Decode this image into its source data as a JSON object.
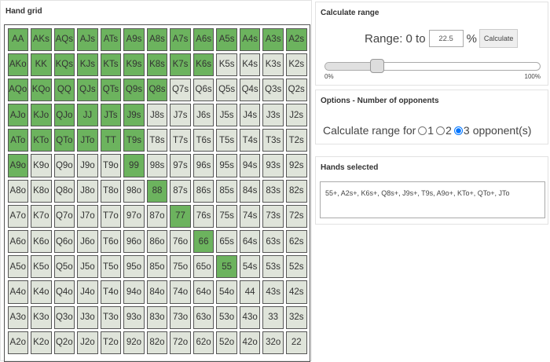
{
  "hand_grid": {
    "title": "Hand grid",
    "rows": [
      [
        "AA",
        "AKs",
        "AQs",
        "AJs",
        "ATs",
        "A9s",
        "A8s",
        "A7s",
        "A6s",
        "A5s",
        "A4s",
        "A3s",
        "A2s"
      ],
      [
        "AKo",
        "KK",
        "KQs",
        "KJs",
        "KTs",
        "K9s",
        "K8s",
        "K7s",
        "K6s",
        "K5s",
        "K4s",
        "K3s",
        "K2s"
      ],
      [
        "AQo",
        "KQo",
        "QQ",
        "QJs",
        "QTs",
        "Q9s",
        "Q8s",
        "Q7s",
        "Q6s",
        "Q5s",
        "Q4s",
        "Q3s",
        "Q2s"
      ],
      [
        "AJo",
        "KJo",
        "QJo",
        "JJ",
        "JTs",
        "J9s",
        "J8s",
        "J7s",
        "J6s",
        "J5s",
        "J4s",
        "J3s",
        "J2s"
      ],
      [
        "ATo",
        "KTo",
        "QTo",
        "JTo",
        "TT",
        "T9s",
        "T8s",
        "T7s",
        "T6s",
        "T5s",
        "T4s",
        "T3s",
        "T2s"
      ],
      [
        "A9o",
        "K9o",
        "Q9o",
        "J9o",
        "T9o",
        "99",
        "98s",
        "97s",
        "96s",
        "95s",
        "94s",
        "93s",
        "92s"
      ],
      [
        "A8o",
        "K8o",
        "Q8o",
        "J8o",
        "T8o",
        "98o",
        "88",
        "87s",
        "86s",
        "85s",
        "84s",
        "83s",
        "82s"
      ],
      [
        "A7o",
        "K7o",
        "Q7o",
        "J7o",
        "T7o",
        "97o",
        "87o",
        "77",
        "76s",
        "75s",
        "74s",
        "73s",
        "72s"
      ],
      [
        "A6o",
        "K6o",
        "Q6o",
        "J6o",
        "T6o",
        "96o",
        "86o",
        "76o",
        "66",
        "65s",
        "64s",
        "63s",
        "62s"
      ],
      [
        "A5o",
        "K5o",
        "Q5o",
        "J5o",
        "T5o",
        "95o",
        "85o",
        "75o",
        "65o",
        "55",
        "54s",
        "53s",
        "52s"
      ],
      [
        "A4o",
        "K4o",
        "Q4o",
        "J4o",
        "T4o",
        "94o",
        "84o",
        "74o",
        "64o",
        "54o",
        "44",
        "43s",
        "42s"
      ],
      [
        "A3o",
        "K3o",
        "Q3o",
        "J3o",
        "T3o",
        "93o",
        "83o",
        "73o",
        "63o",
        "53o",
        "43o",
        "33",
        "32s"
      ],
      [
        "A2o",
        "K2o",
        "Q2o",
        "J2o",
        "T2o",
        "92o",
        "82o",
        "72o",
        "62o",
        "52o",
        "42o",
        "32o",
        "22"
      ]
    ],
    "selected": [
      "AA",
      "AKs",
      "AQs",
      "AJs",
      "ATs",
      "A9s",
      "A8s",
      "A7s",
      "A6s",
      "A5s",
      "A4s",
      "A3s",
      "A2s",
      "AKo",
      "KK",
      "KQs",
      "KJs",
      "KTs",
      "K9s",
      "K8s",
      "K7s",
      "K6s",
      "AQo",
      "KQo",
      "QQ",
      "QJs",
      "QTs",
      "Q9s",
      "Q8s",
      "AJo",
      "KJo",
      "QJo",
      "JJ",
      "JTs",
      "J9s",
      "ATo",
      "KTo",
      "QTo",
      "JTo",
      "TT",
      "T9s",
      "A9o",
      "99",
      "88",
      "77",
      "66",
      "55"
    ],
    "selected_color": "#6cb35e",
    "unselected_color": "#dfe4da"
  },
  "calculate_range": {
    "title": "Calculate range",
    "range_label": "Range: 0 to",
    "value": "22.5",
    "percent_sign": "%",
    "button_label": "Calculate",
    "slider_percent": 22.5,
    "slider_min_label": "0%",
    "slider_max_label": "100%"
  },
  "options": {
    "title": "Options - Number of opponents",
    "prefix": "Calculate range for",
    "choices": [
      "1",
      "2",
      "3"
    ],
    "checked": "3",
    "suffix": "opponent(s)"
  },
  "hands_selected": {
    "title": "Hands selected",
    "text": "55+, A2s+, K6s+, Q8s+, J9s+, T9s, A9o+, KTo+, QTo+, JTo"
  }
}
